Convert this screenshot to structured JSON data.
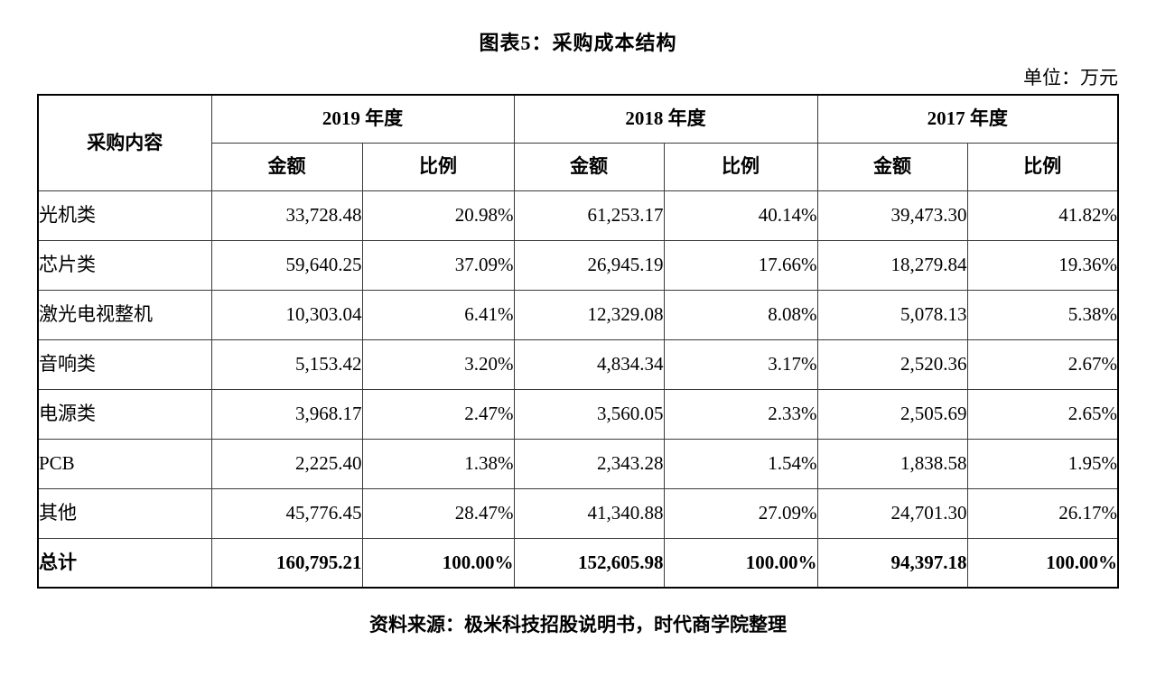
{
  "title": "图表5：采购成本结构",
  "unit": "单位：万元",
  "source": "资料来源：极米科技招股说明书，时代商学院整理",
  "table": {
    "corner_header": "采购内容",
    "year_groups": [
      "2019 年度",
      "2018 年度",
      "2017 年度"
    ],
    "sub_headers": [
      "金额",
      "比例"
    ],
    "rows": [
      {
        "label": "光机类",
        "bold": false,
        "values": [
          "33,728.48",
          "20.98%",
          "61,253.17",
          "40.14%",
          "39,473.30",
          "41.82%"
        ]
      },
      {
        "label": "芯片类",
        "bold": false,
        "values": [
          "59,640.25",
          "37.09%",
          "26,945.19",
          "17.66%",
          "18,279.84",
          "19.36%"
        ]
      },
      {
        "label": "激光电视整机",
        "bold": false,
        "values": [
          "10,303.04",
          "6.41%",
          "12,329.08",
          "8.08%",
          "5,078.13",
          "5.38%"
        ]
      },
      {
        "label": "音响类",
        "bold": false,
        "values": [
          "5,153.42",
          "3.20%",
          "4,834.34",
          "3.17%",
          "2,520.36",
          "2.67%"
        ]
      },
      {
        "label": "电源类",
        "bold": false,
        "values": [
          "3,968.17",
          "2.47%",
          "3,560.05",
          "2.33%",
          "2,505.69",
          "2.65%"
        ]
      },
      {
        "label": "PCB",
        "bold": false,
        "values": [
          "2,225.40",
          "1.38%",
          "2,343.28",
          "1.54%",
          "1,838.58",
          "1.95%"
        ]
      },
      {
        "label": "其他",
        "bold": false,
        "values": [
          "45,776.45",
          "28.47%",
          "41,340.88",
          "27.09%",
          "24,701.30",
          "26.17%"
        ]
      },
      {
        "label": "总计",
        "bold": true,
        "values": [
          "160,795.21",
          "100.00%",
          "152,605.98",
          "100.00%",
          "94,397.18",
          "100.00%"
        ]
      }
    ]
  },
  "chart_data": {
    "type": "table",
    "title": "图表5：采购成本结构",
    "unit": "万元",
    "columns": [
      "采购内容",
      "2019年度 金额",
      "2019年度 比例",
      "2018年度 金额",
      "2018年度 比例",
      "2017年度 金额",
      "2017年度 比例"
    ],
    "rows": [
      [
        "光机类",
        33728.48,
        "20.98%",
        61253.17,
        "40.14%",
        39473.3,
        "41.82%"
      ],
      [
        "芯片类",
        59640.25,
        "37.09%",
        26945.19,
        "17.66%",
        18279.84,
        "19.36%"
      ],
      [
        "激光电视整机",
        10303.04,
        "6.41%",
        12329.08,
        "8.08%",
        5078.13,
        "5.38%"
      ],
      [
        "音响类",
        5153.42,
        "3.20%",
        4834.34,
        "3.17%",
        2520.36,
        "2.67%"
      ],
      [
        "电源类",
        3968.17,
        "2.47%",
        3560.05,
        "2.33%",
        2505.69,
        "2.65%"
      ],
      [
        "PCB",
        2225.4,
        "1.38%",
        2343.28,
        "1.54%",
        1838.58,
        "1.95%"
      ],
      [
        "其他",
        45776.45,
        "28.47%",
        41340.88,
        "27.09%",
        24701.3,
        "26.17%"
      ],
      [
        "总计",
        160795.21,
        "100.00%",
        152605.98,
        "100.00%",
        94397.18,
        "100.00%"
      ]
    ]
  }
}
